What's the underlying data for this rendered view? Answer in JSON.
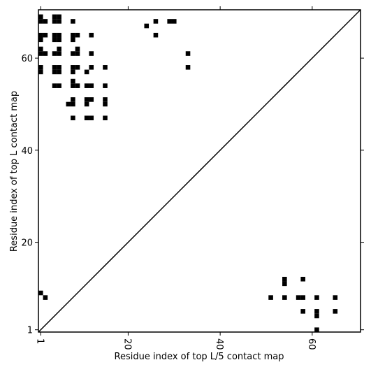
{
  "chart_data": {
    "type": "scatter",
    "marker": "square",
    "color": "#000000",
    "xlabel": "Residue index of top L/5 contact map",
    "ylabel": "Residue index of top L contact map",
    "xlim": [
      0.5,
      70.5
    ],
    "ylim": [
      0.5,
      70.5
    ],
    "xticks": [
      1,
      20,
      40,
      60
    ],
    "yticks": [
      1,
      20,
      40,
      60
    ],
    "x": [
      1,
      4,
      5,
      1,
      2,
      4,
      5,
      8,
      26,
      29,
      30,
      24,
      1,
      2,
      4,
      5,
      8,
      9,
      12,
      26,
      1,
      4,
      5,
      8,
      1,
      5,
      9,
      1,
      2,
      4,
      5,
      8,
      9,
      12,
      33,
      1,
      4,
      5,
      8,
      9,
      12,
      15,
      33,
      1,
      4,
      5,
      8,
      11,
      8,
      4,
      5,
      8,
      9,
      11,
      12,
      15,
      8,
      11,
      12,
      15,
      7,
      8,
      11,
      15,
      8,
      11,
      12,
      15,
      58,
      54,
      54,
      1,
      2,
      51,
      54,
      57,
      58,
      61,
      65,
      58,
      61,
      65,
      61,
      61
    ],
    "y": [
      69,
      69,
      69,
      68,
      68,
      68,
      68,
      68,
      68,
      68,
      68,
      67,
      65,
      65,
      65,
      65,
      65,
      65,
      65,
      65,
      64,
      64,
      64,
      64,
      62,
      62,
      62,
      61,
      61,
      61,
      61,
      61,
      61,
      61,
      61,
      58,
      58,
      58,
      58,
      58,
      58,
      58,
      58,
      57,
      57,
      57,
      57,
      57,
      55,
      54,
      54,
      54,
      54,
      54,
      54,
      54,
      51,
      51,
      51,
      51,
      50,
      50,
      50,
      50,
      47,
      47,
      47,
      47,
      12,
      12,
      11,
      9,
      8,
      8,
      8,
      8,
      8,
      8,
      8,
      5,
      5,
      5,
      4,
      1
    ]
  }
}
